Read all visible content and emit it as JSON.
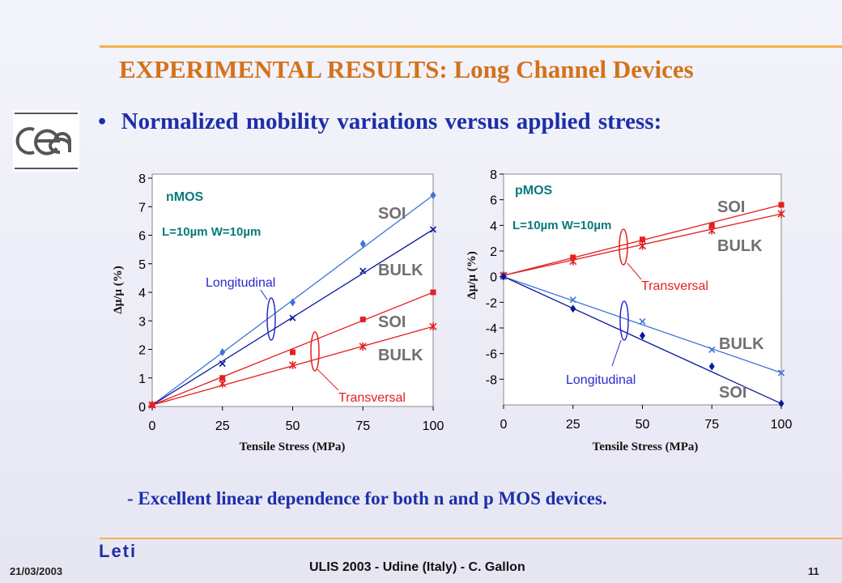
{
  "title": "EXPERIMENTAL RESULTS: Long Channel Devices",
  "bullet": "•",
  "subtitle": "Normalized mobility variations versus applied stress:",
  "conclusion": "- Excellent linear dependence for both n and p MOS devices.",
  "footer": {
    "date": "21/03/2003",
    "center": "ULIS 2003 - Udine (Italy) - C. Gallon",
    "page": "11"
  },
  "logos": {
    "left": "cea",
    "bottom": "Leti"
  },
  "colors": {
    "accent": "#f2b24a",
    "title": "#d4721a",
    "text": "#1c2fa8",
    "red": "#e52020",
    "blue": "#2a2ad0",
    "teal": "#0a7a7a"
  },
  "chart_data": [
    {
      "type": "line",
      "panel_label": "nMOS",
      "device_label": "L=10µm W=10µm",
      "xlabel": "Tensile Stress (MPa)",
      "ylabel": "Δµ/µ (%)",
      "xlim": [
        0,
        100
      ],
      "ylim": [
        0,
        8
      ],
      "xticks": [
        0,
        25,
        50,
        75,
        100
      ],
      "yticks": [
        0,
        1,
        2,
        3,
        4,
        5,
        6,
        7,
        8
      ],
      "series": [
        {
          "name": "SOI",
          "group": "Longitudinal",
          "color": "#3f73d8",
          "marker": "diamond",
          "x": [
            0,
            25,
            50,
            75,
            100
          ],
          "y": [
            0.05,
            1.9,
            3.65,
            5.7,
            7.4
          ]
        },
        {
          "name": "BULK",
          "group": "Longitudinal",
          "color": "#0a1a9a",
          "marker": "x",
          "x": [
            0,
            25,
            50,
            75,
            100
          ],
          "y": [
            0.05,
            1.5,
            3.1,
            4.75,
            6.2
          ]
        },
        {
          "name": "SOI",
          "group": "Transversal",
          "color": "#e52020",
          "marker": "square",
          "x": [
            0,
            25,
            50,
            75,
            100
          ],
          "y": [
            0.05,
            1.0,
            1.9,
            3.05,
            4.0
          ]
        },
        {
          "name": "BULK",
          "group": "Transversal",
          "color": "#e52020",
          "marker": "star",
          "x": [
            0,
            25,
            50,
            75,
            100
          ],
          "y": [
            0.05,
            0.8,
            1.45,
            2.1,
            2.8
          ]
        }
      ],
      "annotations": {
        "longitudinal": "Longitudinal",
        "transversal": "Transversal",
        "soi_long": "SOI",
        "bulk_long": "BULK",
        "soi_trans": "SOI",
        "bulk_trans": "BULK"
      }
    },
    {
      "type": "line",
      "panel_label": "pMOS",
      "device_label": "L=10µm W=10µm",
      "xlabel": "Tensile Stress (MPa)",
      "ylabel": "Δµ/µ (%)",
      "xlim": [
        0,
        100
      ],
      "ylim": [
        -10,
        8
      ],
      "xticks": [
        0,
        25,
        50,
        75,
        100
      ],
      "yticks": [
        8,
        6,
        4,
        2,
        0,
        -2,
        -4,
        -6,
        -8
      ],
      "series": [
        {
          "name": "SOI",
          "group": "Transversal",
          "color": "#e52020",
          "marker": "square",
          "x": [
            0,
            25,
            50,
            75,
            100
          ],
          "y": [
            0.1,
            1.5,
            2.9,
            4.0,
            5.6
          ]
        },
        {
          "name": "BULK",
          "group": "Transversal",
          "color": "#e52020",
          "marker": "star",
          "x": [
            0,
            25,
            50,
            75,
            100
          ],
          "y": [
            0.1,
            1.2,
            2.4,
            3.6,
            4.9
          ]
        },
        {
          "name": "BULK",
          "group": "Longitudinal",
          "color": "#3f73d8",
          "marker": "x",
          "x": [
            0,
            25,
            50,
            75,
            100
          ],
          "y": [
            0.0,
            -1.8,
            -3.5,
            -5.7,
            -7.5
          ]
        },
        {
          "name": "SOI",
          "group": "Longitudinal",
          "color": "#0a1a9a",
          "marker": "diamond",
          "x": [
            0,
            25,
            50,
            75,
            100
          ],
          "y": [
            0.0,
            -2.5,
            -4.6,
            -7.0,
            -9.9
          ]
        }
      ],
      "annotations": {
        "transversal": "Transversal",
        "longitudinal": "Longitudinal",
        "soi_trans": "SOI",
        "bulk_trans": "BULK",
        "bulk_long": "BULK",
        "soi_long": "SOI"
      }
    }
  ]
}
